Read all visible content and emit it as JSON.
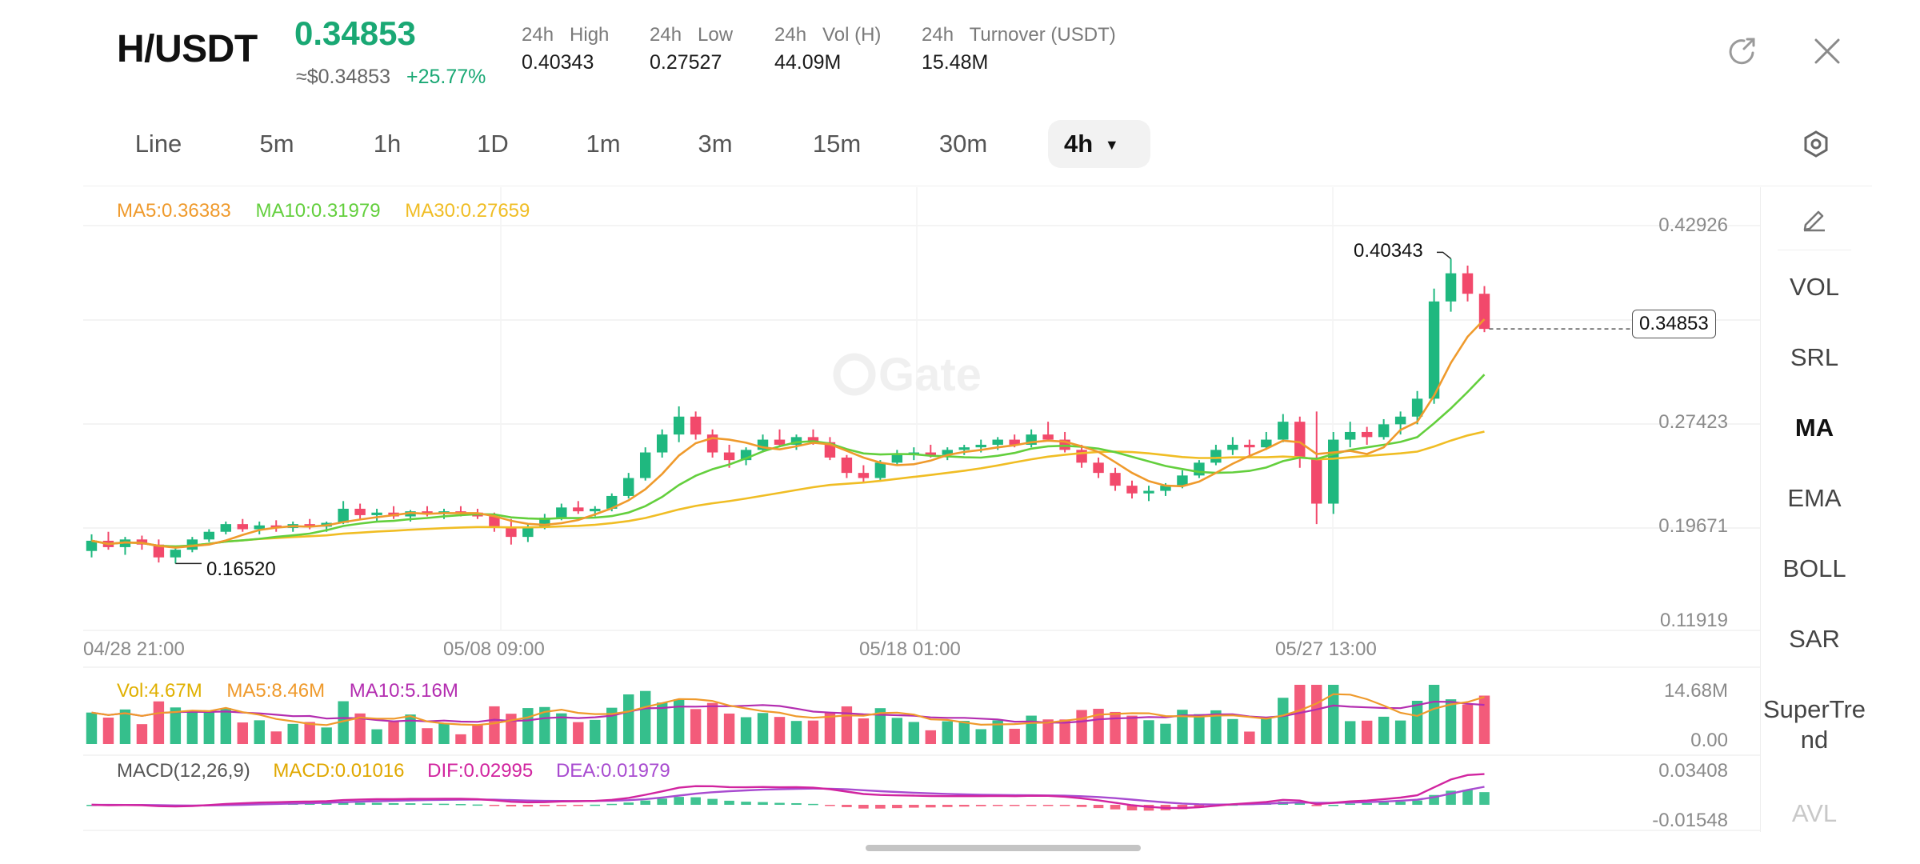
{
  "header": {
    "pair": "H/USDT",
    "price": "0.34853",
    "usd_price": "≈$0.34853",
    "change": "+25.77%",
    "stats": [
      {
        "label": "24h   High",
        "value": "0.40343"
      },
      {
        "label": "24h   Low",
        "value": "0.27527"
      },
      {
        "label": "24h   Vol (H)",
        "value": "44.09M"
      },
      {
        "label": "24h   Turnover (USDT)",
        "value": "15.48M"
      }
    ],
    "share_icon": "share-icon",
    "close_icon": "close-icon"
  },
  "timeframes": [
    "Line",
    "5m",
    "1h",
    "1D",
    "1m",
    "3m",
    "15m",
    "30m",
    "4h"
  ],
  "active_timeframe": "4h",
  "settings_icon": "hexagon-settings-icon",
  "indicators": {
    "edit_icon": "pencil-icon",
    "items": [
      "VOL",
      "SRL",
      "MA",
      "EMA",
      "BOLL",
      "SAR",
      "SuperTrend",
      "AVL"
    ],
    "active": "MA"
  },
  "main_chart": {
    "legend": {
      "ma5": "MA5:0.36383",
      "ma10": "MA10:0.31979",
      "ma30": "MA30:0.27659"
    },
    "y_ticks": [
      "0.42926",
      "0.34853",
      "0.27423",
      "0.19671",
      "0.11919"
    ],
    "current_price_label": "0.34853",
    "high_marker": "0.40343",
    "low_marker": "0.16520",
    "x_ticks": [
      "04/28 21:00",
      "05/08 09:00",
      "05/18 01:00",
      "05/27 13:00"
    ],
    "watermark": "Gate"
  },
  "volume_chart": {
    "legend": {
      "vol": "Vol:4.67M",
      "ma5": "MA5:8.46M",
      "ma10": "MA10:5.16M"
    },
    "y_ticks": [
      "14.68M",
      "0.00"
    ]
  },
  "macd_chart": {
    "legend": {
      "title": "MACD(12,26,9)",
      "macd": "MACD:0.01016",
      "dif": "DIF:0.02995",
      "dea": "DEA:0.01979"
    },
    "y_ticks": [
      "0.03408",
      "-0.01548"
    ]
  },
  "colors": {
    "up": "#1fb87f",
    "down": "#f2496b",
    "accent": "#1aa874",
    "ma5": "#ef9a2c",
    "ma10": "#63cf3d",
    "ma30": "#f0bd24",
    "dif": "#d1249f",
    "dea": "#a84bd0"
  },
  "chart_data": {
    "type": "candlestick",
    "interval": "4h",
    "x_range": [
      "04/28 21:00",
      "05/30"
    ],
    "ylim": [
      0.11919,
      0.42926
    ],
    "high": 0.40343,
    "low": 0.1652,
    "last": 0.34853,
    "candles": [
      [
        0.175,
        0.188,
        0.17,
        0.183
      ],
      [
        0.183,
        0.19,
        0.176,
        0.178
      ],
      [
        0.178,
        0.186,
        0.172,
        0.184
      ],
      [
        0.184,
        0.187,
        0.176,
        0.18
      ],
      [
        0.18,
        0.184,
        0.166,
        0.17
      ],
      [
        0.17,
        0.178,
        0.1652,
        0.176
      ],
      [
        0.176,
        0.186,
        0.174,
        0.184
      ],
      [
        0.184,
        0.192,
        0.182,
        0.19
      ],
      [
        0.19,
        0.198,
        0.188,
        0.196
      ],
      [
        0.196,
        0.2,
        0.19,
        0.192
      ],
      [
        0.192,
        0.198,
        0.188,
        0.195
      ],
      [
        0.195,
        0.199,
        0.19,
        0.193
      ],
      [
        0.193,
        0.198,
        0.19,
        0.196
      ],
      [
        0.196,
        0.2,
        0.192,
        0.194
      ],
      [
        0.194,
        0.198,
        0.19,
        0.197
      ],
      [
        0.197,
        0.214,
        0.196,
        0.208
      ],
      [
        0.208,
        0.212,
        0.2,
        0.203
      ],
      [
        0.203,
        0.208,
        0.198,
        0.205
      ],
      [
        0.205,
        0.21,
        0.2,
        0.202
      ],
      [
        0.202,
        0.207,
        0.198,
        0.206
      ],
      [
        0.206,
        0.21,
        0.202,
        0.204
      ],
      [
        0.204,
        0.208,
        0.2,
        0.206
      ],
      [
        0.206,
        0.21,
        0.202,
        0.205
      ],
      [
        0.205,
        0.208,
        0.2,
        0.202
      ],
      [
        0.202,
        0.205,
        0.19,
        0.194
      ],
      [
        0.194,
        0.2,
        0.18,
        0.186
      ],
      [
        0.186,
        0.196,
        0.182,
        0.194
      ],
      [
        0.194,
        0.204,
        0.192,
        0.201
      ],
      [
        0.201,
        0.212,
        0.199,
        0.209
      ],
      [
        0.209,
        0.214,
        0.204,
        0.206
      ],
      [
        0.206,
        0.21,
        0.202,
        0.208
      ],
      [
        0.208,
        0.22,
        0.206,
        0.218
      ],
      [
        0.218,
        0.236,
        0.216,
        0.232
      ],
      [
        0.232,
        0.256,
        0.23,
        0.252
      ],
      [
        0.252,
        0.27,
        0.248,
        0.266
      ],
      [
        0.266,
        0.288,
        0.26,
        0.28
      ],
      [
        0.28,
        0.284,
        0.262,
        0.266
      ],
      [
        0.266,
        0.27,
        0.248,
        0.252
      ],
      [
        0.252,
        0.258,
        0.24,
        0.246
      ],
      [
        0.246,
        0.256,
        0.242,
        0.254
      ],
      [
        0.254,
        0.266,
        0.252,
        0.262
      ],
      [
        0.262,
        0.27,
        0.256,
        0.258
      ],
      [
        0.258,
        0.266,
        0.254,
        0.264
      ],
      [
        0.264,
        0.27,
        0.258,
        0.26
      ],
      [
        0.26,
        0.264,
        0.246,
        0.248
      ],
      [
        0.248,
        0.25,
        0.232,
        0.236
      ],
      [
        0.236,
        0.242,
        0.228,
        0.232
      ],
      [
        0.232,
        0.246,
        0.23,
        0.244
      ],
      [
        0.244,
        0.254,
        0.242,
        0.25
      ],
      [
        0.25,
        0.256,
        0.246,
        0.252
      ],
      [
        0.252,
        0.258,
        0.248,
        0.25
      ],
      [
        0.25,
        0.256,
        0.246,
        0.254
      ],
      [
        0.254,
        0.258,
        0.25,
        0.256
      ],
      [
        0.256,
        0.262,
        0.252,
        0.258
      ],
      [
        0.258,
        0.264,
        0.254,
        0.262
      ],
      [
        0.262,
        0.266,
        0.256,
        0.258
      ],
      [
        0.258,
        0.27,
        0.256,
        0.266
      ],
      [
        0.266,
        0.276,
        0.262,
        0.262
      ],
      [
        0.262,
        0.268,
        0.252,
        0.254
      ],
      [
        0.254,
        0.258,
        0.24,
        0.244
      ],
      [
        0.244,
        0.248,
        0.232,
        0.236
      ],
      [
        0.236,
        0.24,
        0.222,
        0.226
      ],
      [
        0.226,
        0.23,
        0.216,
        0.22
      ],
      [
        0.22,
        0.226,
        0.214,
        0.222
      ],
      [
        0.222,
        0.228,
        0.218,
        0.226
      ],
      [
        0.226,
        0.238,
        0.224,
        0.234
      ],
      [
        0.234,
        0.246,
        0.232,
        0.244
      ],
      [
        0.244,
        0.258,
        0.242,
        0.254
      ],
      [
        0.254,
        0.264,
        0.25,
        0.258
      ],
      [
        0.258,
        0.262,
        0.25,
        0.256
      ],
      [
        0.256,
        0.268,
        0.254,
        0.262
      ],
      [
        0.262,
        0.282,
        0.26,
        0.276
      ],
      [
        0.276,
        0.28,
        0.24,
        0.248
      ],
      [
        0.248,
        0.284,
        0.196,
        0.212
      ],
      [
        0.212,
        0.268,
        0.204,
        0.262
      ],
      [
        0.262,
        0.276,
        0.256,
        0.268
      ],
      [
        0.268,
        0.272,
        0.258,
        0.264
      ],
      [
        0.264,
        0.278,
        0.262,
        0.274
      ],
      [
        0.274,
        0.284,
        0.266,
        0.28
      ],
      [
        0.28,
        0.3,
        0.274,
        0.294
      ],
      [
        0.294,
        0.38,
        0.29,
        0.37
      ],
      [
        0.37,
        0.40343,
        0.362,
        0.392
      ],
      [
        0.392,
        0.398,
        0.37,
        0.376
      ],
      [
        0.376,
        0.382,
        0.346,
        0.34853
      ]
    ],
    "series": [
      {
        "name": "MA5",
        "value": 0.36383
      },
      {
        "name": "MA10",
        "value": 0.31979
      },
      {
        "name": "MA30",
        "value": 0.27659
      }
    ],
    "volume": {
      "last": "4.67M",
      "max": "14.68M"
    },
    "macd": {
      "macd": 0.01016,
      "dif": 0.02995,
      "dea": 0.01979,
      "ylim": [
        -0.01548,
        0.03408
      ]
    }
  }
}
